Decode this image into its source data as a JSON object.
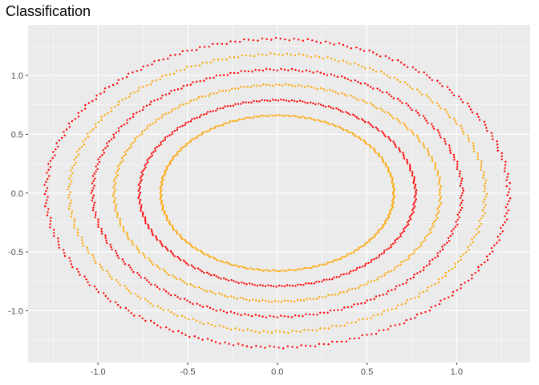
{
  "chart_data": {
    "type": "scatter",
    "title": "Classification",
    "xlabel": "",
    "ylabel": "",
    "xlim": [
      -1.39,
      1.41
    ],
    "ylim": [
      -1.44,
      1.43
    ],
    "xticks": [
      -1.0,
      -0.5,
      0.0,
      0.5,
      1.0
    ],
    "xtick_labels": [
      "-1.0",
      "-0.5",
      "0.0",
      "0.5",
      "1.0"
    ],
    "yticks": [
      -1.0,
      -0.5,
      0.0,
      0.5,
      1.0
    ],
    "ytick_labels": [
      "-1.0",
      "-0.5",
      "0.0",
      "0.5",
      "1.0"
    ],
    "grid": true,
    "legend": "none",
    "colors": {
      "panel_bg": "#ebebeb",
      "grid_major": "#ffffff",
      "class_a": "#ff0000",
      "class_b": "#ffa500"
    },
    "rings": [
      {
        "rx": 0.65,
        "ry": 0.66,
        "color": "class_b"
      },
      {
        "rx": 0.77,
        "ry": 0.79,
        "color": "class_a"
      },
      {
        "rx": 0.91,
        "ry": 0.92,
        "color": "class_b"
      },
      {
        "rx": 1.03,
        "ry": 1.05,
        "color": "class_a"
      },
      {
        "rx": 1.16,
        "ry": 1.18,
        "color": "class_b"
      },
      {
        "rx": 1.29,
        "ry": 1.31,
        "color": "class_a"
      }
    ]
  }
}
